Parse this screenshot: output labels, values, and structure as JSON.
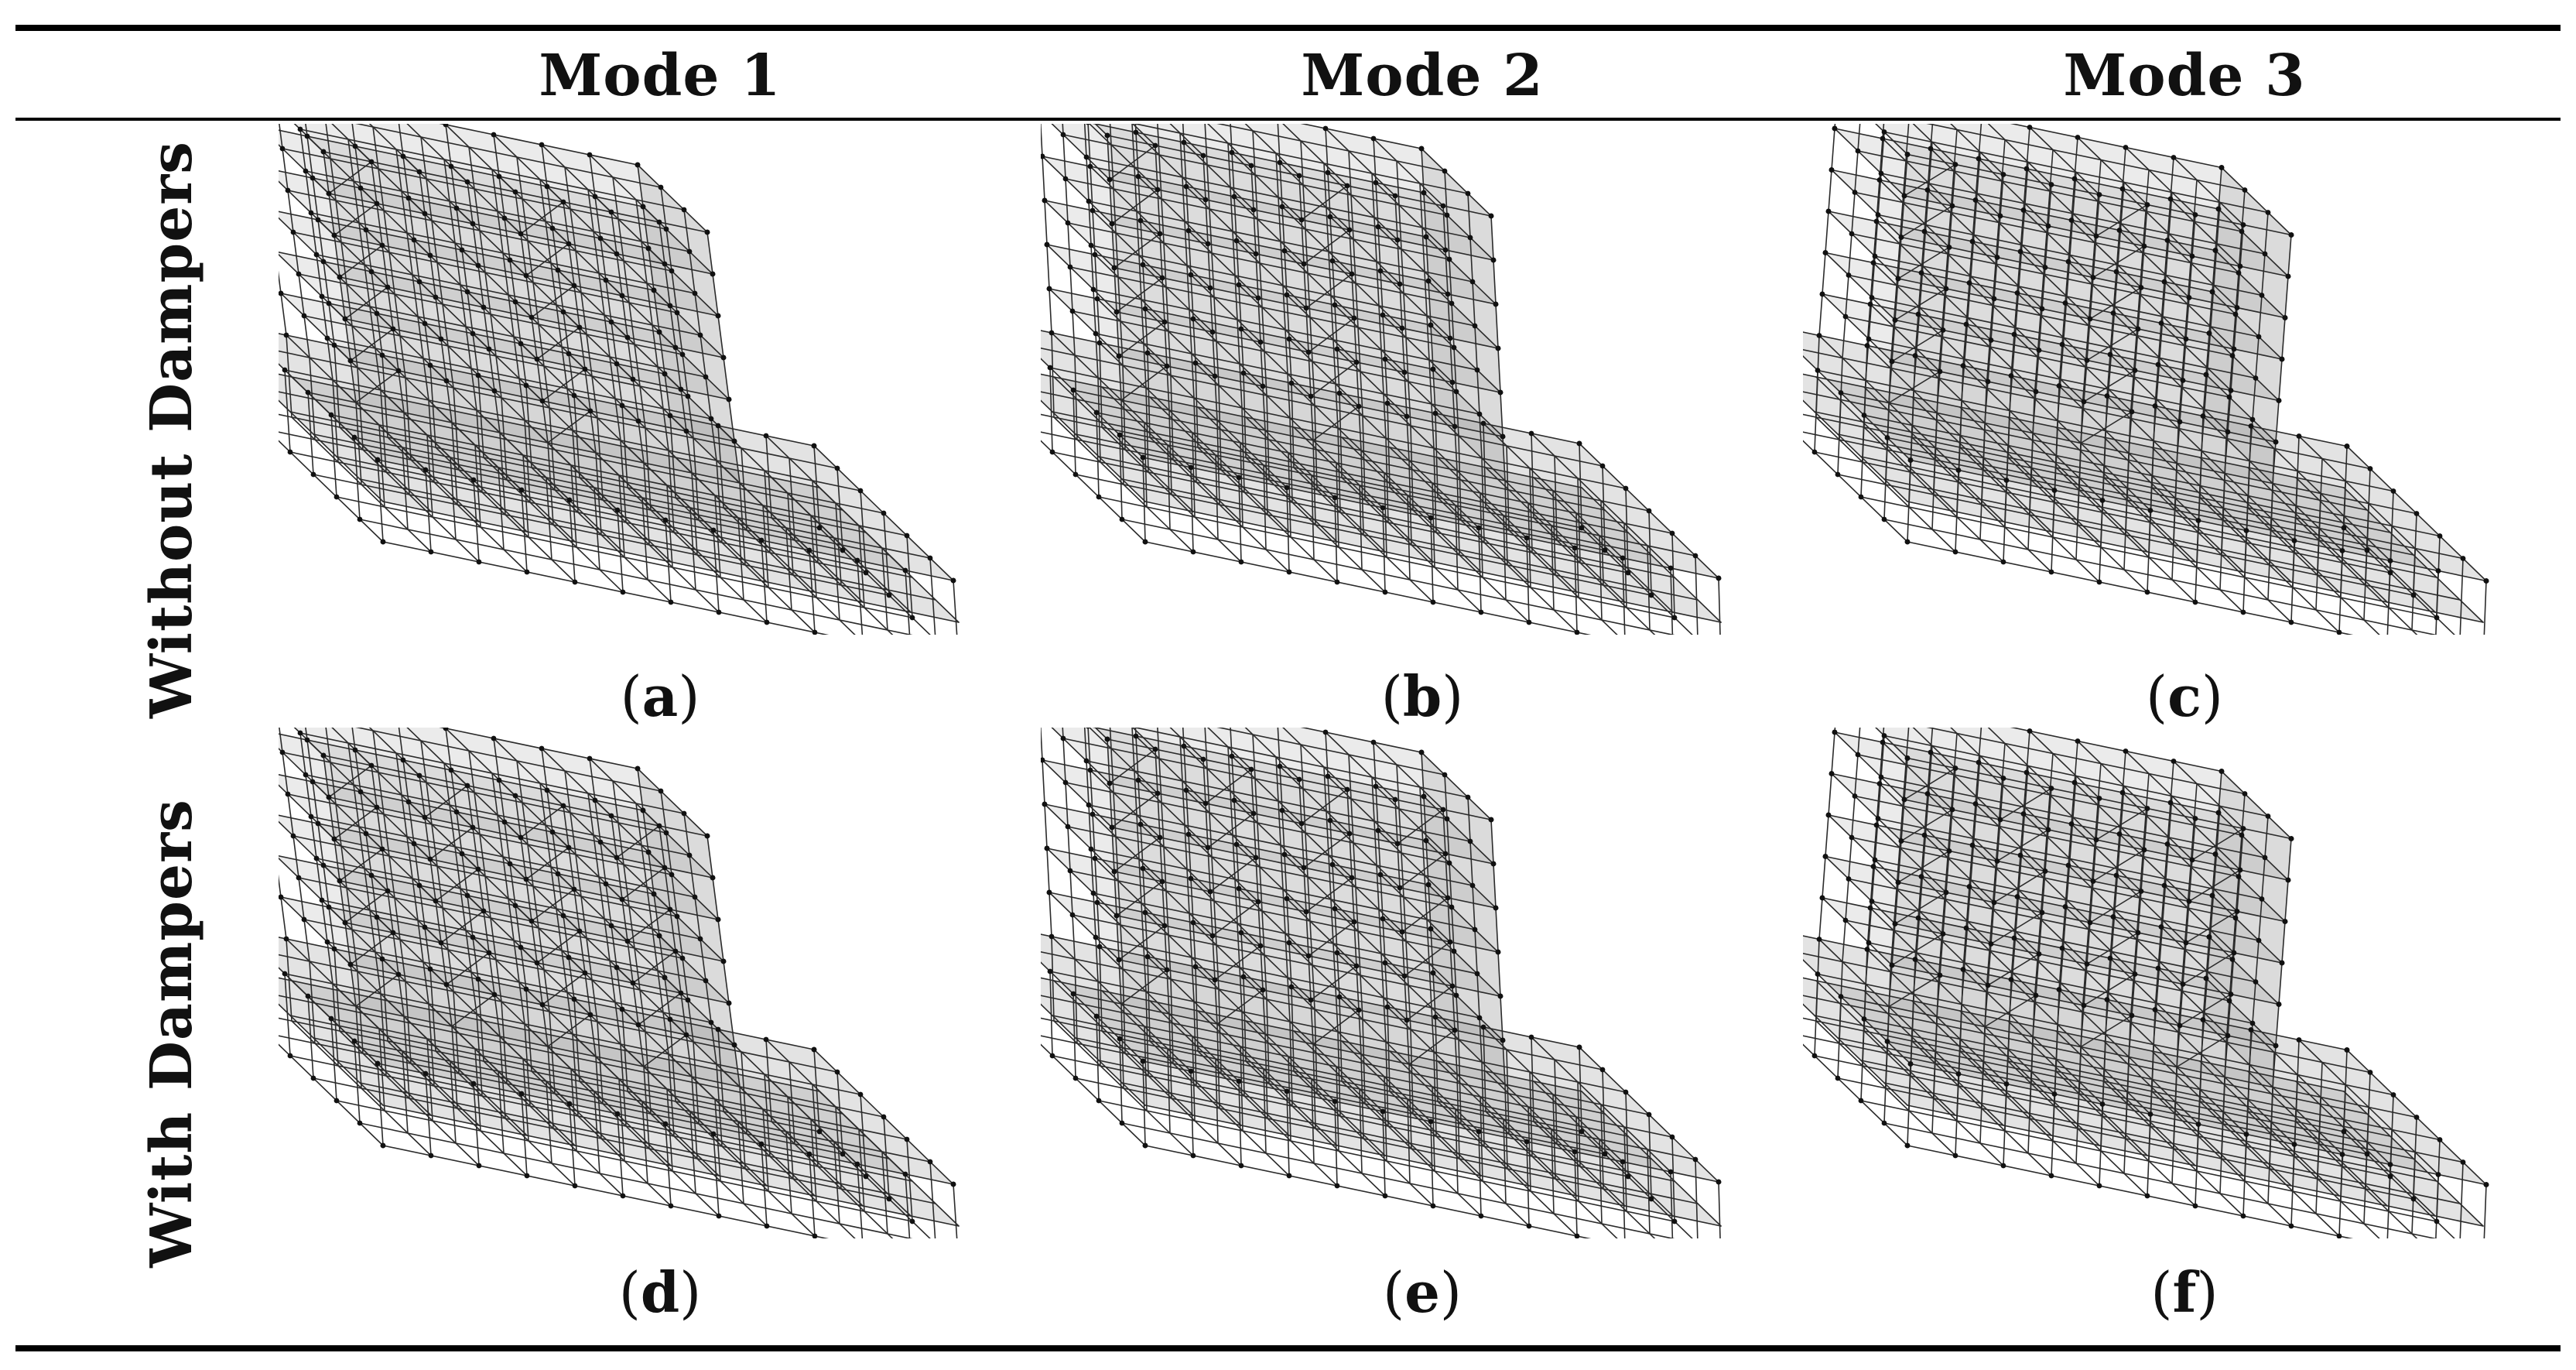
{
  "columns": [
    {
      "id": "mode1",
      "label": "Mode 1"
    },
    {
      "id": "mode2",
      "label": "Mode 2"
    },
    {
      "id": "mode3",
      "label": "Mode 3"
    }
  ],
  "rows": [
    {
      "id": "without",
      "label": "Without Dampers"
    },
    {
      "id": "with",
      "label": "With Dampers"
    }
  ],
  "panels": [
    {
      "id": "a",
      "paren_open": "(",
      "letter": "a",
      "paren_close": ")"
    },
    {
      "id": "b",
      "paren_open": "(",
      "letter": "b",
      "paren_close": ")"
    },
    {
      "id": "c",
      "paren_open": "(",
      "letter": "c",
      "paren_close": ")"
    },
    {
      "id": "d",
      "paren_open": "(",
      "letter": "d",
      "paren_close": ")"
    },
    {
      "id": "e",
      "paren_open": "(",
      "letter": "e",
      "paren_close": ")"
    },
    {
      "id": "f",
      "paren_open": "(",
      "letter": "f",
      "paren_close": ")"
    }
  ],
  "colors": {
    "frame_line": "#2b2b2b",
    "node": "#111111",
    "floor_fill": "#9a9a9a",
    "rule": "#000000"
  }
}
